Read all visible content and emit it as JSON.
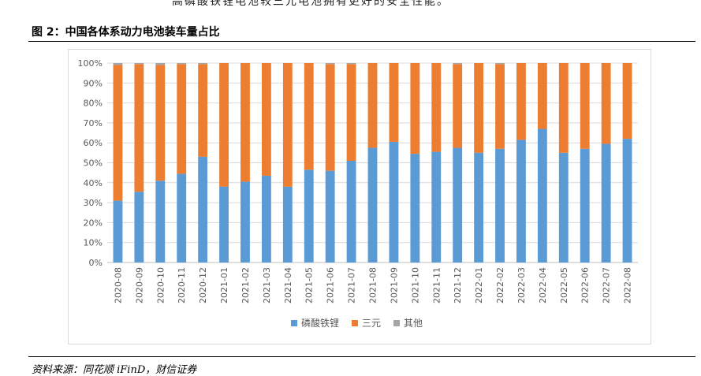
{
  "top_text": "高磷酸铁锂电池较三元电池拥有更好的安全性能。",
  "figure_title": "图 2：中国各体系动力电池装车量占比",
  "source": "资料来源：同花顺 iFinD，财信证券",
  "chart_data": {
    "type": "bar",
    "stacked": true,
    "title": "",
    "xlabel": "",
    "ylabel": "",
    "ylim": [
      0,
      100
    ],
    "y_ticks": [
      "0%",
      "10%",
      "20%",
      "30%",
      "40%",
      "50%",
      "60%",
      "70%",
      "80%",
      "90%",
      "100%"
    ],
    "categories": [
      "2020-08",
      "2020-09",
      "2020-10",
      "2020-11",
      "2020-12",
      "2021-01",
      "2021-02",
      "2021-03",
      "2021-04",
      "2021-05",
      "2021-06",
      "2021-07",
      "2021-08",
      "2021-09",
      "2021-10",
      "2021-11",
      "2021-12",
      "2022-01",
      "2022-02",
      "2022-03",
      "2022-04",
      "2022-05",
      "2022-06",
      "2022-07",
      "2022-08"
    ],
    "series": [
      {
        "name": "磷酸铁锂",
        "color": "#5b9bd5",
        "values": [
          31,
          35.5,
          41,
          44.5,
          53,
          38,
          40.5,
          43.5,
          38,
          46.5,
          46,
          51,
          57.5,
          60.5,
          54.5,
          55.5,
          57.5,
          55,
          57,
          61.5,
          67,
          55,
          57,
          59.5,
          62
        ]
      },
      {
        "name": "三元",
        "color": "#ed7d31",
        "values": [
          68,
          64,
          58,
          55,
          46.5,
          62,
          59.5,
          56.5,
          62,
          53.5,
          53.5,
          48.5,
          42.5,
          39.5,
          45.5,
          44.5,
          42,
          45,
          42.5,
          38.5,
          33,
          45,
          43,
          40.5,
          38
        ]
      },
      {
        "name": "其他",
        "color": "#a5a5a5",
        "values": [
          1,
          0.5,
          1,
          0.5,
          0.5,
          0,
          0,
          0,
          0,
          0,
          0.5,
          0.5,
          0,
          0,
          0,
          0,
          0.5,
          0,
          0.5,
          0,
          0,
          0,
          0,
          0,
          0
        ]
      }
    ],
    "grid": true,
    "legend_position": "bottom"
  }
}
